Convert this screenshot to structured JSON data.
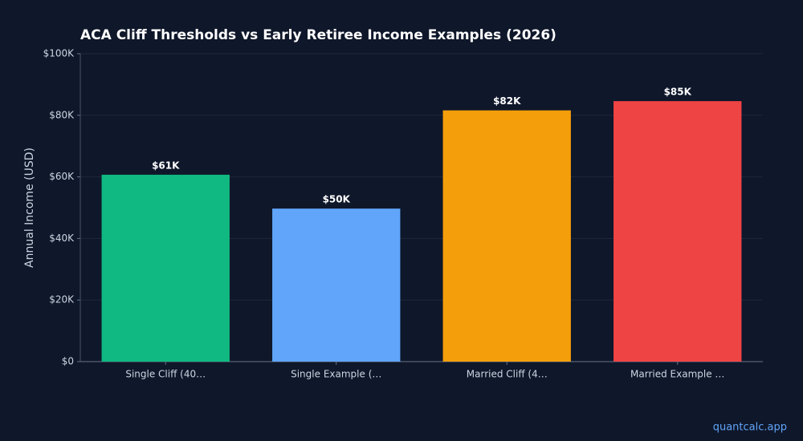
{
  "chart_data": {
    "type": "bar",
    "title": "ACA Cliff Thresholds vs Early Retiree Income Examples (2026)",
    "y_label": "Annual Income (USD)",
    "categories": [
      "Single Cliff (40…",
      "Single Example (…",
      "Married Cliff (4…",
      "Married Example …"
    ],
    "values": [
      60700,
      49700,
      81600,
      84600
    ],
    "value_labels": [
      "$61K",
      "$50K",
      "$82K",
      "$85K"
    ],
    "colors": [
      "#10b981",
      "#60a5fa",
      "#f59e0b",
      "#ef4444"
    ],
    "ylim": [
      0,
      100000
    ],
    "yticks": [
      {
        "value": 0,
        "label": "$0"
      },
      {
        "value": 20000,
        "label": "$20K"
      },
      {
        "value": 40000,
        "label": "$40K"
      },
      {
        "value": 60000,
        "label": "$60K"
      },
      {
        "value": 80000,
        "label": "$80K"
      },
      {
        "value": 100000,
        "label": "$100K"
      }
    ],
    "grid": true
  },
  "watermark": "quantcalc.app"
}
